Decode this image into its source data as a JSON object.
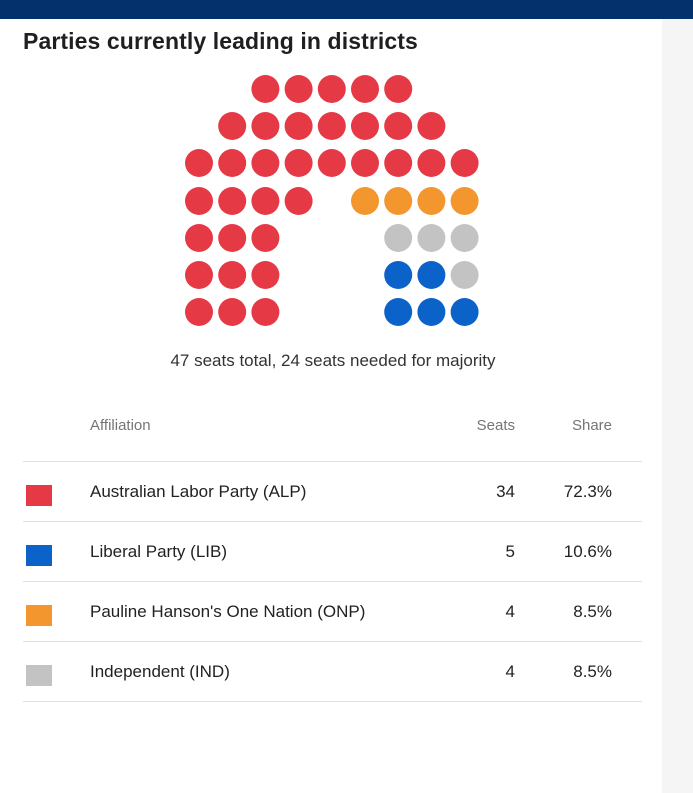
{
  "title": "Parties currently leading in districts",
  "caption": "47 seats total, 24 seats needed for majority",
  "table": {
    "headers": {
      "affiliation": "Affiliation",
      "seats": "Seats",
      "share": "Share"
    },
    "rows": [
      {
        "name": "Australian Labor Party (ALP)",
        "seats": "34",
        "share": "72.3%",
        "color": "#e63946"
      },
      {
        "name": "Liberal Party (LIB)",
        "seats": "5",
        "share": "10.6%",
        "color": "#0b62c9"
      },
      {
        "name": "Pauline Hanson's One Nation (ONP)",
        "seats": "4",
        "share": "8.5%",
        "color": "#f3962d"
      },
      {
        "name": "Independent (IND)",
        "seats": "4",
        "share": "8.5%",
        "color": "#c3c3c3"
      }
    ]
  },
  "chart_data": {
    "type": "parliament",
    "total_seats": 47,
    "majority": 24,
    "series": [
      {
        "name": "Australian Labor Party (ALP)",
        "seats": 34,
        "color": "#e63946"
      },
      {
        "name": "Liberal Party (LIB)",
        "seats": 5,
        "color": "#0b62c9"
      },
      {
        "name": "Pauline Hanson's One Nation (ONP)",
        "seats": 4,
        "color": "#f3962d"
      },
      {
        "name": "Independent (IND)",
        "seats": 4,
        "color": "#c3c3c3"
      }
    ]
  }
}
